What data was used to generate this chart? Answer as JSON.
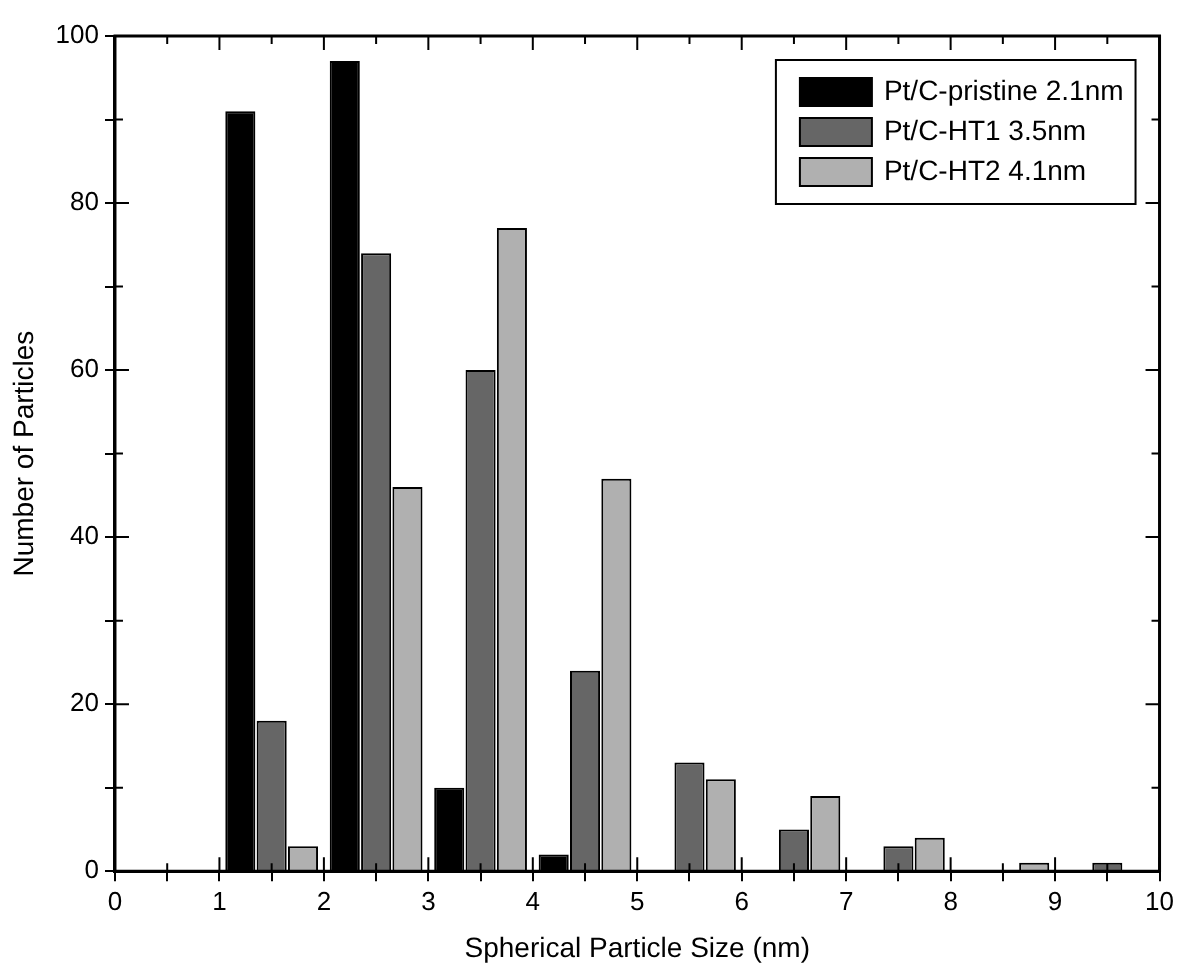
{
  "chart_data": {
    "type": "bar",
    "xlabel": "Spherical Particle Size (nm)",
    "ylabel": "Number of Particles",
    "xlim": [
      0,
      10
    ],
    "ylim": [
      0,
      100
    ],
    "xticks": [
      0,
      {
        "value": 0.5,
        "label": null
      },
      1,
      {
        "value": 1.5,
        "label": null
      },
      2,
      {
        "value": 2.5,
        "label": null
      },
      3,
      {
        "value": 3.5,
        "label": null
      },
      4,
      {
        "value": 4.5,
        "label": null
      },
      5,
      {
        "value": 5.5,
        "label": null
      },
      6,
      {
        "value": 6.5,
        "label": null
      },
      7,
      {
        "value": 7.5,
        "label": null
      },
      8,
      {
        "value": 8.5,
        "label": null
      },
      9,
      {
        "value": 9.5,
        "label": null
      },
      10
    ],
    "yticks": [
      0,
      {
        "value": 10,
        "label": null
      },
      20,
      {
        "value": 30,
        "label": null
      },
      40,
      {
        "value": 50,
        "label": null
      },
      60,
      {
        "value": 70,
        "label": null
      },
      80,
      {
        "value": 90,
        "label": null
      },
      100
    ],
    "legend": "top right",
    "series": [
      {
        "name": "Pt/C-pristine 2.1nm",
        "color": "#000000",
        "x": [
          1.2,
          2.2,
          3.2,
          4.2
        ],
        "values": [
          91,
          97,
          10,
          2
        ]
      },
      {
        "name": "Pt/C-HT1 3.5nm",
        "color": "#666666",
        "x": [
          1.5,
          2.5,
          3.5,
          4.5,
          5.5,
          6.5,
          7.5,
          9.5
        ],
        "values": [
          18,
          74,
          60,
          24,
          13,
          5,
          3,
          1
        ]
      },
      {
        "name": "Pt/C-HT2 4.1nm",
        "color": "#b0b0b0",
        "x": [
          1.8,
          2.8,
          3.8,
          4.8,
          5.8,
          6.8,
          7.8,
          8.8
        ],
        "values": [
          3,
          46,
          77,
          47,
          11,
          9,
          4,
          1
        ]
      }
    ]
  }
}
